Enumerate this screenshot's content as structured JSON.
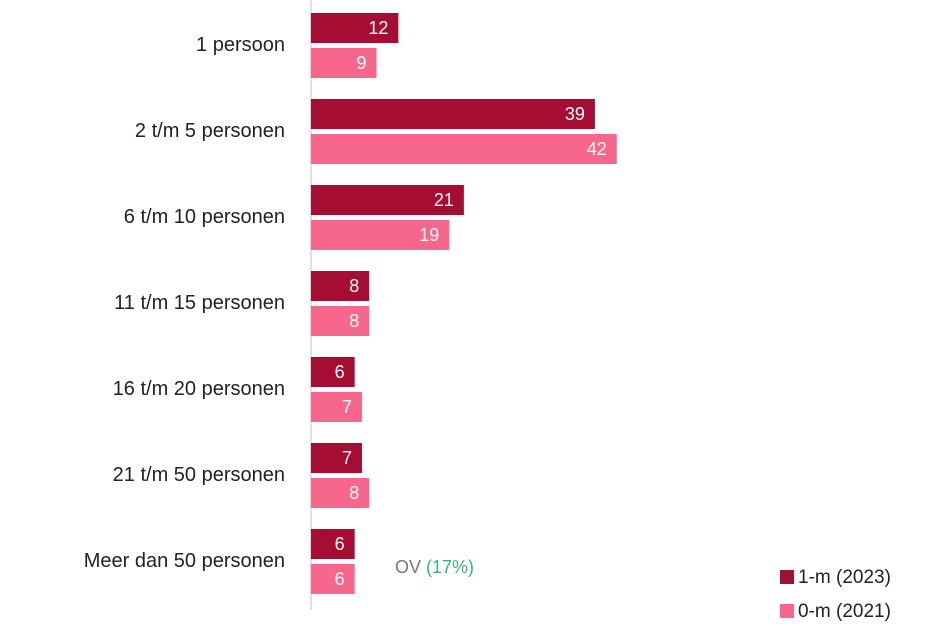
{
  "chart_data": {
    "type": "bar",
    "orientation": "horizontal",
    "categories": [
      "1 persoon",
      "2 t/m 5 personen",
      "6 t/m 10 personen",
      "11 t/m 15 personen",
      "16 t/m 20 personen",
      "21 t/m 50 personen",
      "Meer dan 50 personen"
    ],
    "series": [
      {
        "name": "1-m (2023)",
        "color": "#a50d33",
        "values": [
          12,
          39,
          21,
          8,
          6,
          7,
          6
        ]
      },
      {
        "name": "0-m (2021)",
        "color": "#f7668b",
        "values": [
          9,
          42,
          19,
          8,
          7,
          8,
          6
        ]
      }
    ],
    "annotation": {
      "text": "OV",
      "note": "(17%)"
    },
    "legend": "bottom-right"
  }
}
